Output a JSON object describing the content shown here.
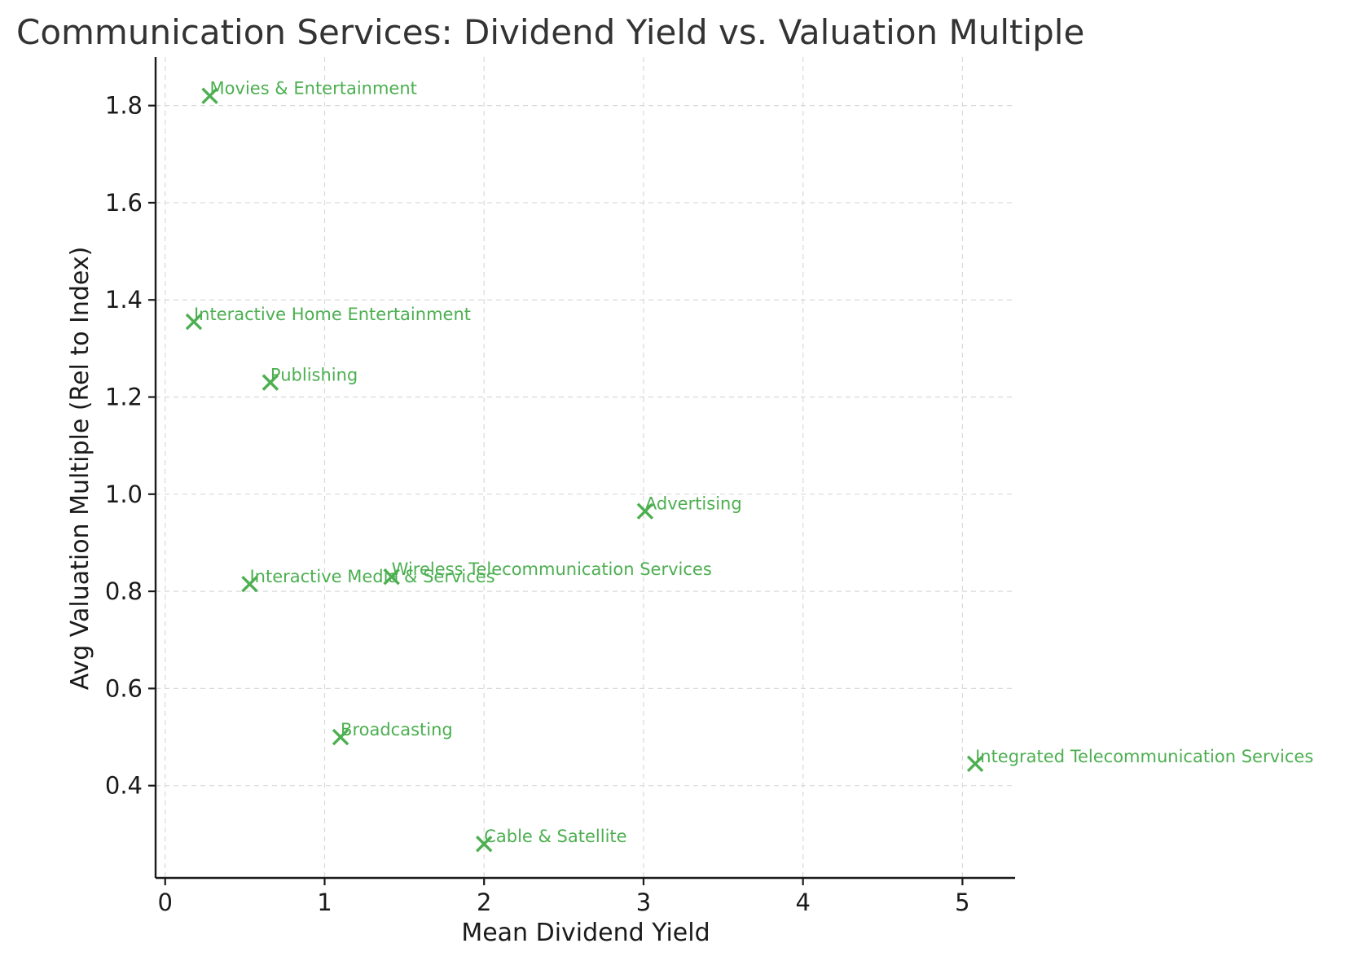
{
  "chart_data": {
    "type": "scatter",
    "title": "Communication Services: Dividend Yield vs. Valuation Multiple",
    "xlabel": "Mean Dividend Yield",
    "ylabel": "Avg Valuation Multiple (Rel to Index)",
    "xlim": [
      -0.06,
      5.33
    ],
    "ylim": [
      0.21,
      1.9
    ],
    "xticks": [
      0,
      1,
      2,
      3,
      4,
      5
    ],
    "xtick_labels": [
      "0",
      "1",
      "2",
      "3",
      "4",
      "5"
    ],
    "yticks": [
      0.4,
      0.6,
      0.8,
      1.0,
      1.2,
      1.4,
      1.6,
      1.8
    ],
    "ytick_labels": [
      "0.4",
      "0.6",
      "0.8",
      "1.0",
      "1.2",
      "1.4",
      "1.6",
      "1.8"
    ],
    "grid": true,
    "marker": "x",
    "color": "#4caf50",
    "points": [
      {
        "label": "Movies & Entertainment",
        "x": 0.28,
        "y": 1.82
      },
      {
        "label": "Interactive Home Entertainment",
        "x": 0.18,
        "y": 1.355
      },
      {
        "label": "Publishing",
        "x": 0.66,
        "y": 1.23
      },
      {
        "label": "Advertising",
        "x": 3.01,
        "y": 0.965
      },
      {
        "label": "Wireless Telecommunication Services",
        "x": 1.42,
        "y": 0.83
      },
      {
        "label": "Interactive Media & Services",
        "x": 0.53,
        "y": 0.815
      },
      {
        "label": "Broadcasting",
        "x": 1.1,
        "y": 0.5
      },
      {
        "label": "Integrated Telecommunication Services",
        "x": 5.08,
        "y": 0.445
      },
      {
        "label": "Cable & Satellite",
        "x": 2.0,
        "y": 0.28
      }
    ]
  }
}
